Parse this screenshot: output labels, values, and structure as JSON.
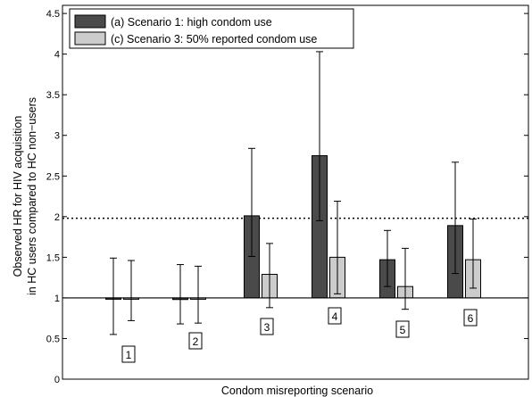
{
  "chart_data": {
    "type": "bar",
    "title": "",
    "xlabel": "Condom misreporting scenario",
    "ylabel_lines": [
      "Observed HR for HIV acquisition",
      "in HC users compared to HC non−users"
    ],
    "ylim": [
      0,
      4.6
    ],
    "yticks": [
      0,
      0.5,
      1,
      1.5,
      2,
      2.5,
      3,
      3.5,
      4,
      4.5
    ],
    "ytick_labels": [
      "0",
      "0.5",
      "1",
      "1.5",
      "2",
      "2.5",
      "3",
      "3.5",
      "4",
      "4.5"
    ],
    "baseline": 1,
    "reference_line": 1.98,
    "categories": [
      "1",
      "2",
      "3",
      "4",
      "5",
      "6"
    ],
    "series": [
      {
        "name": "(a) Scenario 1: high condom use",
        "color": "#4a4a4a",
        "values": [
          0.99,
          0.98,
          2.01,
          2.75,
          1.47,
          1.89
        ],
        "ci_low": [
          0.55,
          0.68,
          1.51,
          1.95,
          1.14,
          1.3
        ],
        "ci_high": [
          1.49,
          1.41,
          2.84,
          4.03,
          1.83,
          2.67
        ]
      },
      {
        "name": "(c) Scenario 3: 50% reported condom use",
        "color": "#cccccc",
        "values": [
          0.99,
          0.99,
          1.29,
          1.5,
          1.14,
          1.47
        ],
        "ci_low": [
          0.72,
          0.69,
          0.88,
          1.05,
          0.86,
          1.12
        ],
        "ci_high": [
          1.46,
          1.39,
          1.67,
          2.19,
          1.61,
          1.97
        ]
      }
    ],
    "grid": false,
    "legend_position": "top-left"
  }
}
